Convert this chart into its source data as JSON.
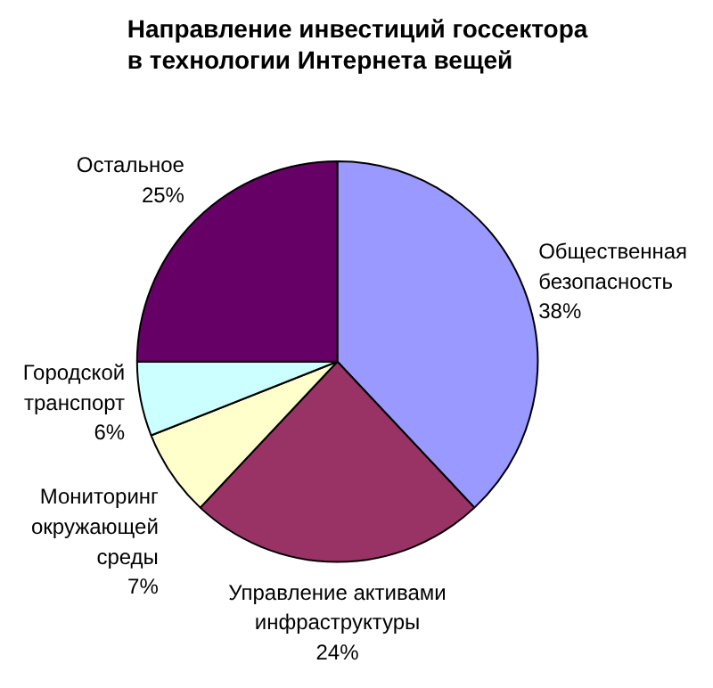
{
  "chart_data": {
    "type": "pie",
    "title": "Направление инвестиций госсектора\nв технологии Интернета вещей",
    "categories": [
      "Общественная\nбезопасность",
      "Управление активами\nинфраструктуры",
      "Мониторинг\nокружающей\nсреды",
      "Городской\nтранспорт",
      "Остальное"
    ],
    "values": [
      38,
      24,
      7,
      6,
      25
    ],
    "value_labels": [
      "38%",
      "24%",
      "7%",
      "6%",
      "25%"
    ],
    "colors": [
      "#9999ff",
      "#993366",
      "#ffffcc",
      "#ccffff",
      "#660066"
    ]
  }
}
